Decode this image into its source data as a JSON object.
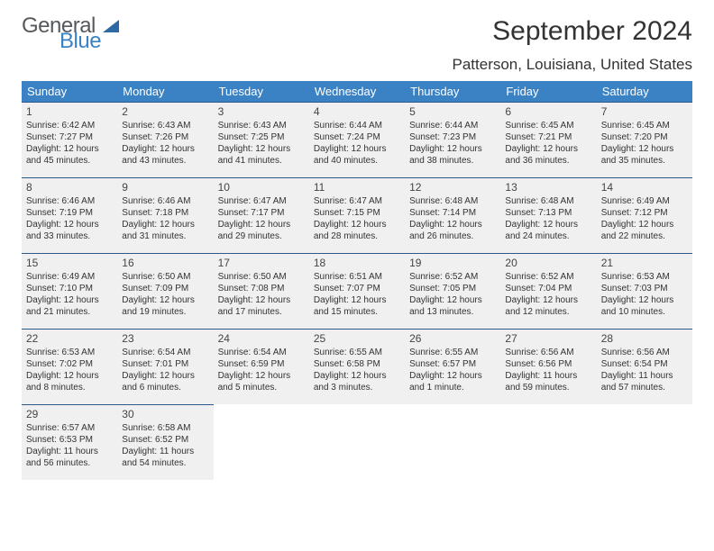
{
  "logo": {
    "part1": "General",
    "part2": "Blue"
  },
  "title": "September 2024",
  "subtitle": "Patterson, Louisiana, United States",
  "calendar": {
    "type": "table",
    "header_bg": "#3b82c4",
    "header_fg": "#ffffff",
    "cell_bg": "#f0f0f0",
    "cell_border_top": "#2d5a8a",
    "title_fontsize": 30,
    "subtitle_fontsize": 17,
    "header_fontsize": 13,
    "cell_fontsize": 10,
    "columns": [
      "Sunday",
      "Monday",
      "Tuesday",
      "Wednesday",
      "Thursday",
      "Friday",
      "Saturday"
    ],
    "start_offset": 0,
    "days": [
      {
        "n": 1,
        "sunrise": "6:42 AM",
        "sunset": "7:27 PM",
        "dl1": "Daylight: 12 hours",
        "dl2": "and 45 minutes."
      },
      {
        "n": 2,
        "sunrise": "6:43 AM",
        "sunset": "7:26 PM",
        "dl1": "Daylight: 12 hours",
        "dl2": "and 43 minutes."
      },
      {
        "n": 3,
        "sunrise": "6:43 AM",
        "sunset": "7:25 PM",
        "dl1": "Daylight: 12 hours",
        "dl2": "and 41 minutes."
      },
      {
        "n": 4,
        "sunrise": "6:44 AM",
        "sunset": "7:24 PM",
        "dl1": "Daylight: 12 hours",
        "dl2": "and 40 minutes."
      },
      {
        "n": 5,
        "sunrise": "6:44 AM",
        "sunset": "7:23 PM",
        "dl1": "Daylight: 12 hours",
        "dl2": "and 38 minutes."
      },
      {
        "n": 6,
        "sunrise": "6:45 AM",
        "sunset": "7:21 PM",
        "dl1": "Daylight: 12 hours",
        "dl2": "and 36 minutes."
      },
      {
        "n": 7,
        "sunrise": "6:45 AM",
        "sunset": "7:20 PM",
        "dl1": "Daylight: 12 hours",
        "dl2": "and 35 minutes."
      },
      {
        "n": 8,
        "sunrise": "6:46 AM",
        "sunset": "7:19 PM",
        "dl1": "Daylight: 12 hours",
        "dl2": "and 33 minutes."
      },
      {
        "n": 9,
        "sunrise": "6:46 AM",
        "sunset": "7:18 PM",
        "dl1": "Daylight: 12 hours",
        "dl2": "and 31 minutes."
      },
      {
        "n": 10,
        "sunrise": "6:47 AM",
        "sunset": "7:17 PM",
        "dl1": "Daylight: 12 hours",
        "dl2": "and 29 minutes."
      },
      {
        "n": 11,
        "sunrise": "6:47 AM",
        "sunset": "7:15 PM",
        "dl1": "Daylight: 12 hours",
        "dl2": "and 28 minutes."
      },
      {
        "n": 12,
        "sunrise": "6:48 AM",
        "sunset": "7:14 PM",
        "dl1": "Daylight: 12 hours",
        "dl2": "and 26 minutes."
      },
      {
        "n": 13,
        "sunrise": "6:48 AM",
        "sunset": "7:13 PM",
        "dl1": "Daylight: 12 hours",
        "dl2": "and 24 minutes."
      },
      {
        "n": 14,
        "sunrise": "6:49 AM",
        "sunset": "7:12 PM",
        "dl1": "Daylight: 12 hours",
        "dl2": "and 22 minutes."
      },
      {
        "n": 15,
        "sunrise": "6:49 AM",
        "sunset": "7:10 PM",
        "dl1": "Daylight: 12 hours",
        "dl2": "and 21 minutes."
      },
      {
        "n": 16,
        "sunrise": "6:50 AM",
        "sunset": "7:09 PM",
        "dl1": "Daylight: 12 hours",
        "dl2": "and 19 minutes."
      },
      {
        "n": 17,
        "sunrise": "6:50 AM",
        "sunset": "7:08 PM",
        "dl1": "Daylight: 12 hours",
        "dl2": "and 17 minutes."
      },
      {
        "n": 18,
        "sunrise": "6:51 AM",
        "sunset": "7:07 PM",
        "dl1": "Daylight: 12 hours",
        "dl2": "and 15 minutes."
      },
      {
        "n": 19,
        "sunrise": "6:52 AM",
        "sunset": "7:05 PM",
        "dl1": "Daylight: 12 hours",
        "dl2": "and 13 minutes."
      },
      {
        "n": 20,
        "sunrise": "6:52 AM",
        "sunset": "7:04 PM",
        "dl1": "Daylight: 12 hours",
        "dl2": "and 12 minutes."
      },
      {
        "n": 21,
        "sunrise": "6:53 AM",
        "sunset": "7:03 PM",
        "dl1": "Daylight: 12 hours",
        "dl2": "and 10 minutes."
      },
      {
        "n": 22,
        "sunrise": "6:53 AM",
        "sunset": "7:02 PM",
        "dl1": "Daylight: 12 hours",
        "dl2": "and 8 minutes."
      },
      {
        "n": 23,
        "sunrise": "6:54 AM",
        "sunset": "7:01 PM",
        "dl1": "Daylight: 12 hours",
        "dl2": "and 6 minutes."
      },
      {
        "n": 24,
        "sunrise": "6:54 AM",
        "sunset": "6:59 PM",
        "dl1": "Daylight: 12 hours",
        "dl2": "and 5 minutes."
      },
      {
        "n": 25,
        "sunrise": "6:55 AM",
        "sunset": "6:58 PM",
        "dl1": "Daylight: 12 hours",
        "dl2": "and 3 minutes."
      },
      {
        "n": 26,
        "sunrise": "6:55 AM",
        "sunset": "6:57 PM",
        "dl1": "Daylight: 12 hours",
        "dl2": "and 1 minute."
      },
      {
        "n": 27,
        "sunrise": "6:56 AM",
        "sunset": "6:56 PM",
        "dl1": "Daylight: 11 hours",
        "dl2": "and 59 minutes."
      },
      {
        "n": 28,
        "sunrise": "6:56 AM",
        "sunset": "6:54 PM",
        "dl1": "Daylight: 11 hours",
        "dl2": "and 57 minutes."
      },
      {
        "n": 29,
        "sunrise": "6:57 AM",
        "sunset": "6:53 PM",
        "dl1": "Daylight: 11 hours",
        "dl2": "and 56 minutes."
      },
      {
        "n": 30,
        "sunrise": "6:58 AM",
        "sunset": "6:52 PM",
        "dl1": "Daylight: 11 hours",
        "dl2": "and 54 minutes."
      }
    ]
  }
}
